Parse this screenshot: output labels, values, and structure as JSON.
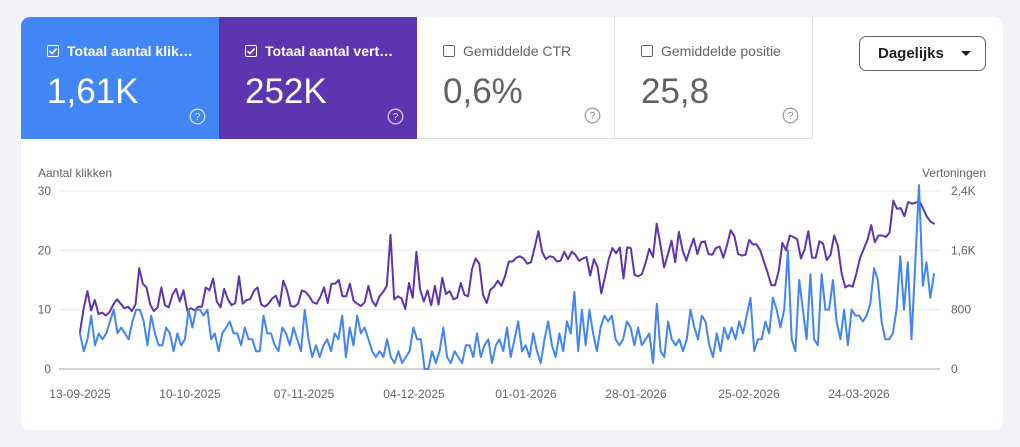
{
  "metrics": [
    {
      "label": "Totaal aantal klikk…",
      "value": "1,61K",
      "checked": true
    },
    {
      "label": "Totaal aantal vert…",
      "value": "252K",
      "checked": true
    },
    {
      "label": "Gemiddelde CTR",
      "value": "0,6%",
      "checked": false
    },
    {
      "label": "Gemiddelde positie",
      "value": "25,8",
      "checked": false
    }
  ],
  "period_select": {
    "label": "Dagelijks"
  },
  "colors": {
    "clicks": "#4285f4",
    "impressions": "#5e35b1",
    "grid": "#e8eaed"
  },
  "chart_data": {
    "type": "line",
    "y_left_label": "Aantal klikken",
    "y_right_label": "Vertoningen",
    "y_left_ticks": [
      "0",
      "10",
      "20",
      "30"
    ],
    "y_right_ticks": [
      "0",
      "800",
      "1,6K",
      "2,4K"
    ],
    "y_left_range": [
      0,
      30
    ],
    "y_right_range": [
      0,
      2400
    ],
    "x_tick_labels": [
      "13-09-2025",
      "10-10-2025",
      "07-11-2025",
      "04-12-2025",
      "01-01-2026",
      "28-01-2026",
      "25-02-2026",
      "24-03-2026"
    ],
    "grid": true,
    "series": [
      {
        "name": "Totaal aantal klikken",
        "axis": "left",
        "color": "#4285f4",
        "values": [
          6,
          3,
          5,
          9,
          4,
          6,
          5,
          6,
          8,
          10,
          6,
          7,
          6,
          5,
          8,
          10,
          10,
          8,
          4,
          9,
          6,
          4,
          4,
          7,
          6,
          3,
          6,
          4,
          5,
          10,
          7,
          10,
          10,
          9,
          10,
          5,
          6,
          3,
          6,
          7,
          8,
          6,
          6,
          4,
          7,
          5,
          5,
          3,
          3,
          9,
          6,
          6,
          4,
          3,
          7,
          6,
          4,
          7,
          5,
          3,
          10,
          5,
          2,
          4,
          2,
          4,
          5,
          3,
          6,
          5,
          9,
          2,
          7,
          4,
          9,
          6,
          7,
          5,
          3,
          2,
          3,
          2,
          5,
          2,
          1,
          3,
          1,
          2,
          3,
          7,
          5,
          5,
          0,
          0,
          3,
          1,
          3,
          7,
          2,
          1,
          3,
          2,
          1,
          4,
          4,
          2,
          6,
          2,
          4,
          5,
          1,
          4,
          5,
          3,
          7,
          2,
          5,
          8,
          3,
          4,
          2,
          6,
          3,
          1,
          5,
          8,
          4,
          2,
          6,
          3,
          8,
          6,
          13,
          3,
          10,
          4,
          10,
          6,
          3,
          7,
          9,
          8,
          9,
          5,
          4,
          5,
          8,
          7,
          4,
          7,
          4,
          5,
          6,
          1,
          11,
          3,
          2,
          8,
          5,
          4,
          5,
          3,
          5,
          10,
          7,
          5,
          9,
          8,
          4,
          2,
          6,
          3,
          7,
          5,
          7,
          5,
          8,
          6,
          9,
          12,
          3,
          5,
          5,
          8,
          6,
          12,
          10,
          7,
          10,
          20,
          5,
          3,
          15,
          10,
          5,
          16,
          5,
          4,
          16,
          10,
          10,
          15,
          8,
          5,
          10,
          4,
          10,
          9,
          9,
          8,
          9,
          11,
          17,
          15,
          8,
          5,
          5,
          6,
          10,
          19,
          10,
          18,
          5,
          18,
          31,
          14,
          18,
          12,
          16
        ]
      },
      {
        "name": "Totaal aantal vertoningen",
        "axis": "right",
        "color": "#5e35b1",
        "values": [
          500,
          820,
          1050,
          790,
          930,
          740,
          760,
          720,
          770,
          870,
          940,
          880,
          820,
          840,
          780,
          870,
          1360,
          1150,
          1100,
          870,
          780,
          830,
          1100,
          860,
          830,
          1000,
          1080,
          910,
          1060,
          790,
          820,
          790,
          840,
          840,
          1100,
          1060,
          1220,
          910,
          830,
          1080,
          940,
          860,
          890,
          1250,
          880,
          930,
          940,
          1050,
          1100,
          870,
          840,
          880,
          950,
          990,
          850,
          1190,
          1060,
          850,
          840,
          880,
          1060,
          1040,
          980,
          900,
          880,
          970,
          1100,
          890,
          1150,
          1150,
          1200,
          980,
          980,
          1150,
          920,
          880,
          850,
          900,
          1120,
          920,
          850,
          980,
          1040,
          1120,
          1810,
          940,
          980,
          950,
          810,
          1160,
          960,
          1580,
          1070,
          910,
          1060,
          860,
          1120,
          870,
          1230,
          1010,
          1050,
          940,
          960,
          1160,
          1000,
          980,
          1340,
          1490,
          1420,
          1000,
          890,
          1070,
          1110,
          1190,
          1120,
          1260,
          1450,
          1450,
          1500,
          1520,
          1490,
          1420,
          1440,
          1640,
          1860,
          1580,
          1480,
          1520,
          1510,
          1450,
          1460,
          1580,
          1480,
          1580,
          1540,
          1460,
          1490,
          1510,
          1260,
          1480,
          1370,
          1020,
          1240,
          1480,
          1630,
          1560,
          1640,
          1220,
          1640,
          1630,
          1270,
          1250,
          1280,
          1430,
          1620,
          1510,
          1960,
          1680,
          1370,
          1540,
          1730,
          1440,
          1850,
          1600,
          1460,
          1620,
          1760,
          1550,
          1710,
          1720,
          1550,
          1540,
          1630,
          1650,
          1500,
          1670,
          1870,
          1790,
          1550,
          1530,
          1540,
          1740,
          1680,
          1680,
          1600,
          1450,
          1300,
          1130,
          1130,
          1320,
          1700,
          1600,
          1800,
          1780,
          1750,
          1490,
          1610,
          1860,
          1500,
          1500,
          1720,
          1690,
          1470,
          1540,
          1800,
          1660,
          1290,
          1100,
          1130,
          1110,
          1290,
          1500,
          1620,
          1740,
          1940,
          1710,
          1800,
          1800,
          1780,
          1840,
          2270,
          2160,
          2170,
          2060,
          2250,
          2230,
          2240,
          2270,
          2170,
          2060,
          1990,
          1960
        ]
      }
    ]
  }
}
